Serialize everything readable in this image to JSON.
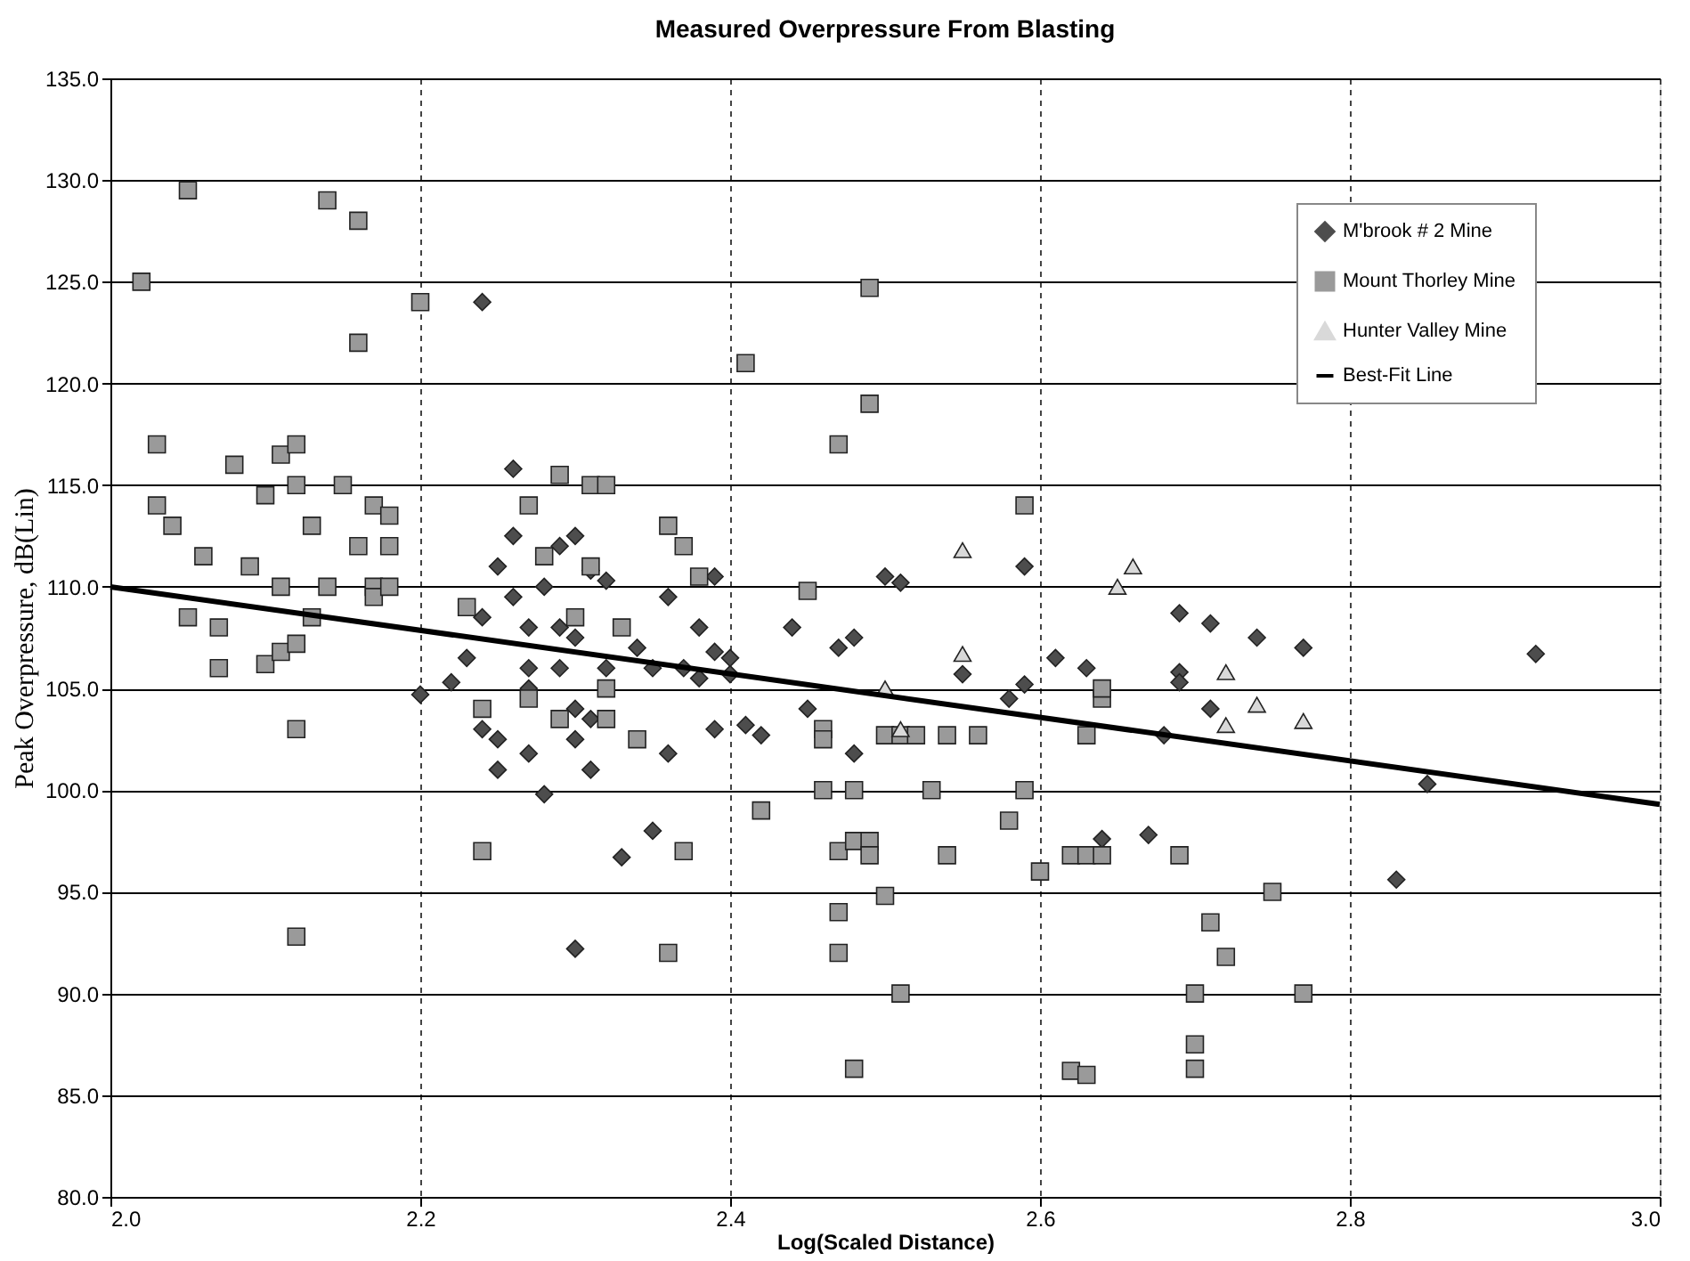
{
  "chart_data": {
    "type": "scatter",
    "title": "Measured Overpressure From Blasting",
    "xlabel": "Log(Scaled Distance)",
    "ylabel": "Peak Overpressure, dB(Lin)",
    "xlim": [
      2.0,
      3.0
    ],
    "ylim": [
      80,
      135
    ],
    "xticks": [
      {
        "value": 2,
        "label": "2.0"
      },
      {
        "value": 2.2,
        "label": "2.2"
      },
      {
        "value": 2.4,
        "label": "2.4"
      },
      {
        "value": 2.6,
        "label": "2.6"
      },
      {
        "value": 2.8,
        "label": "2.8"
      },
      {
        "value": 3,
        "label": "3.0"
      }
    ],
    "yticks": [
      {
        "value": 80,
        "label": "80.0"
      },
      {
        "value": 85,
        "label": "85.0"
      },
      {
        "value": 90,
        "label": "90.0"
      },
      {
        "value": 95,
        "label": "95.0"
      },
      {
        "value": 100,
        "label": "100.0"
      },
      {
        "value": 105,
        "label": "105.0"
      },
      {
        "value": 110,
        "label": "110.0"
      },
      {
        "value": 115,
        "label": "115.0"
      },
      {
        "value": 120,
        "label": "120.0"
      },
      {
        "value": 125,
        "label": "125.0"
      },
      {
        "value": 130,
        "label": "130.0"
      },
      {
        "value": 135,
        "label": "135.0"
      }
    ],
    "grid": true,
    "legend": "top right",
    "series": [
      {
        "name": "M'brook # 2 Mine",
        "color": "#4d4d4d",
        "marker": "diamond",
        "x": [
          2.2,
          2.24,
          2.22,
          2.23,
          2.24,
          2.24,
          2.25,
          2.25,
          2.25,
          2.26,
          2.26,
          2.26,
          2.27,
          2.27,
          2.27,
          2.27,
          2.28,
          2.28,
          2.29,
          2.29,
          2.29,
          2.3,
          2.3,
          2.3,
          2.3,
          2.31,
          2.31,
          2.3,
          2.31,
          2.32,
          2.32,
          2.33,
          2.34,
          2.35,
          2.35,
          2.36,
          2.36,
          2.37,
          2.38,
          2.38,
          2.39,
          2.39,
          2.39,
          2.4,
          2.4,
          2.41,
          2.42,
          2.44,
          2.45,
          2.47,
          2.48,
          2.48,
          2.5,
          2.51,
          2.55,
          2.59,
          2.58,
          2.59,
          2.61,
          2.63,
          2.64,
          2.67,
          2.68,
          2.69,
          2.69,
          2.69,
          2.71,
          2.71,
          2.74,
          2.77,
          2.83,
          2.85,
          2.92
        ],
        "values": [
          104.7,
          124,
          105.3,
          106.5,
          103,
          108.5,
          101,
          102.5,
          111,
          112.5,
          115.8,
          109.5,
          108,
          106,
          105,
          101.8,
          99.8,
          110,
          112,
          108,
          106,
          112.5,
          107.5,
          104,
          102.5,
          101,
          103.5,
          92.2,
          110.8,
          110.3,
          106,
          96.7,
          107,
          98,
          106,
          101.8,
          109.5,
          106,
          108,
          105.5,
          110.5,
          106.8,
          103,
          106.5,
          105.7,
          103.2,
          102.7,
          108,
          104,
          107,
          107.5,
          101.8,
          110.5,
          110.2,
          105.7,
          111,
          104.5,
          105.2,
          106.5,
          106,
          97.6,
          97.8,
          102.7,
          108.7,
          105.8,
          105.3,
          108.2,
          104,
          107.5,
          107,
          95.6,
          100.3,
          106.7
        ]
      },
      {
        "name": "Mount Thorley Mine",
        "color": "#9a9a9a",
        "marker": "square",
        "x": [
          2.02,
          2.05,
          2.03,
          2.03,
          2.04,
          2.05,
          2.06,
          2.07,
          2.07,
          2.08,
          2.09,
          2.1,
          2.1,
          2.11,
          2.11,
          2.11,
          2.12,
          2.12,
          2.12,
          2.13,
          2.13,
          2.14,
          2.14,
          2.15,
          2.16,
          2.16,
          2.16,
          2.17,
          2.17,
          2.17,
          2.18,
          2.18,
          2.18,
          2.12,
          2.12,
          2.2,
          2.23,
          2.24,
          2.24,
          2.27,
          2.28,
          2.29,
          2.3,
          2.31,
          2.32,
          2.31,
          2.33,
          2.32,
          2.32,
          2.29,
          2.27,
          2.34,
          2.36,
          2.37,
          2.37,
          2.36,
          2.38,
          2.41,
          2.42,
          2.45,
          2.46,
          2.46,
          2.46,
          2.47,
          2.47,
          2.47,
          2.47,
          2.48,
          2.48,
          2.49,
          2.49,
          2.48,
          2.49,
          2.49,
          2.5,
          2.5,
          2.51,
          2.51,
          2.52,
          2.53,
          2.54,
          2.54,
          2.56,
          2.58,
          2.59,
          2.59,
          2.6,
          2.62,
          2.63,
          2.64,
          2.62,
          2.63,
          2.63,
          2.64,
          2.64,
          2.69,
          2.7,
          2.7,
          2.7,
          2.71,
          2.72,
          2.75,
          2.77
        ],
        "values": [
          125,
          129.5,
          117,
          114,
          113,
          108.5,
          111.5,
          108,
          106,
          116,
          111,
          106.2,
          114.5,
          116.5,
          110,
          106.8,
          107.2,
          117,
          115,
          113,
          108.5,
          129,
          110,
          115,
          128,
          122,
          112,
          114,
          110,
          109.5,
          113.5,
          112,
          110,
          103,
          92.8,
          124,
          109,
          104,
          97,
          114,
          111.5,
          115.5,
          108.5,
          115,
          115,
          111,
          108,
          105,
          103.5,
          103.5,
          104.5,
          102.5,
          113,
          112,
          97,
          92,
          110.5,
          121,
          99,
          109.8,
          103,
          102.5,
          100,
          97,
          94,
          92,
          117,
          100,
          97.5,
          97.5,
          96.8,
          86.3,
          124.7,
          119,
          94.8,
          102.7,
          102.7,
          90,
          102.7,
          100,
          96.8,
          102.7,
          102.7,
          98.5,
          114,
          100,
          96,
          96.8,
          96.8,
          96.8,
          86.2,
          86,
          102.7,
          104.5,
          105,
          96.8,
          87.5,
          86.3,
          90,
          93.5,
          91.8,
          95,
          90
        ]
      },
      {
        "name": "Hunter Valley Mine",
        "color": "#d9d9d9",
        "marker": "triangle",
        "x": [
          2.5,
          2.51,
          2.55,
          2.55,
          2.65,
          2.66,
          2.72,
          2.72,
          2.74,
          2.77
        ],
        "values": [
          105,
          103,
          111.8,
          106.7,
          110,
          111,
          103.2,
          105.8,
          104.2,
          103.4
        ]
      },
      {
        "name": "Best-Fit Line",
        "type": "line",
        "color": "#000000",
        "marker": "none",
        "line_style": "solid",
        "x": [
          2.0,
          3.0
        ],
        "values": [
          110,
          99.3
        ]
      }
    ]
  }
}
